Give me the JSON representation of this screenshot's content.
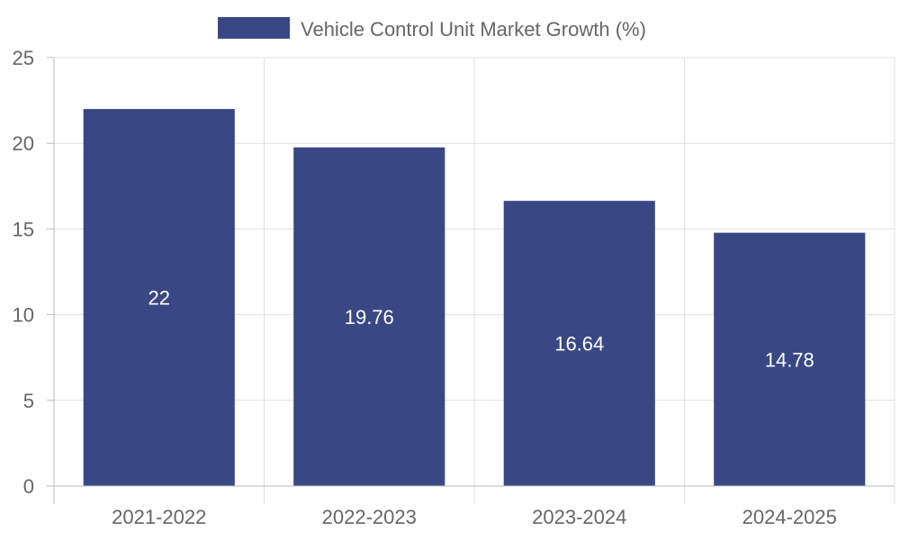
{
  "chart_data": {
    "type": "bar",
    "categories": [
      "2021-2022",
      "2022-2023",
      "2023-2024",
      "2024-2025"
    ],
    "series": [
      {
        "name": "Vehicle Control Unit Market Growth (%)",
        "values": [
          22,
          19.76,
          16.64,
          14.78
        ],
        "color": "#394884"
      }
    ],
    "data_labels": [
      "22",
      "19.76",
      "16.64",
      "14.78"
    ],
    "title": "",
    "xlabel": "",
    "ylabel": "",
    "ylim": [
      0,
      25
    ],
    "yticks": [
      0,
      5,
      10,
      15,
      20,
      25
    ],
    "ytick_labels": [
      "0",
      "5",
      "10",
      "15",
      "20",
      "25"
    ],
    "grid": true,
    "legend_position": "top-center"
  }
}
